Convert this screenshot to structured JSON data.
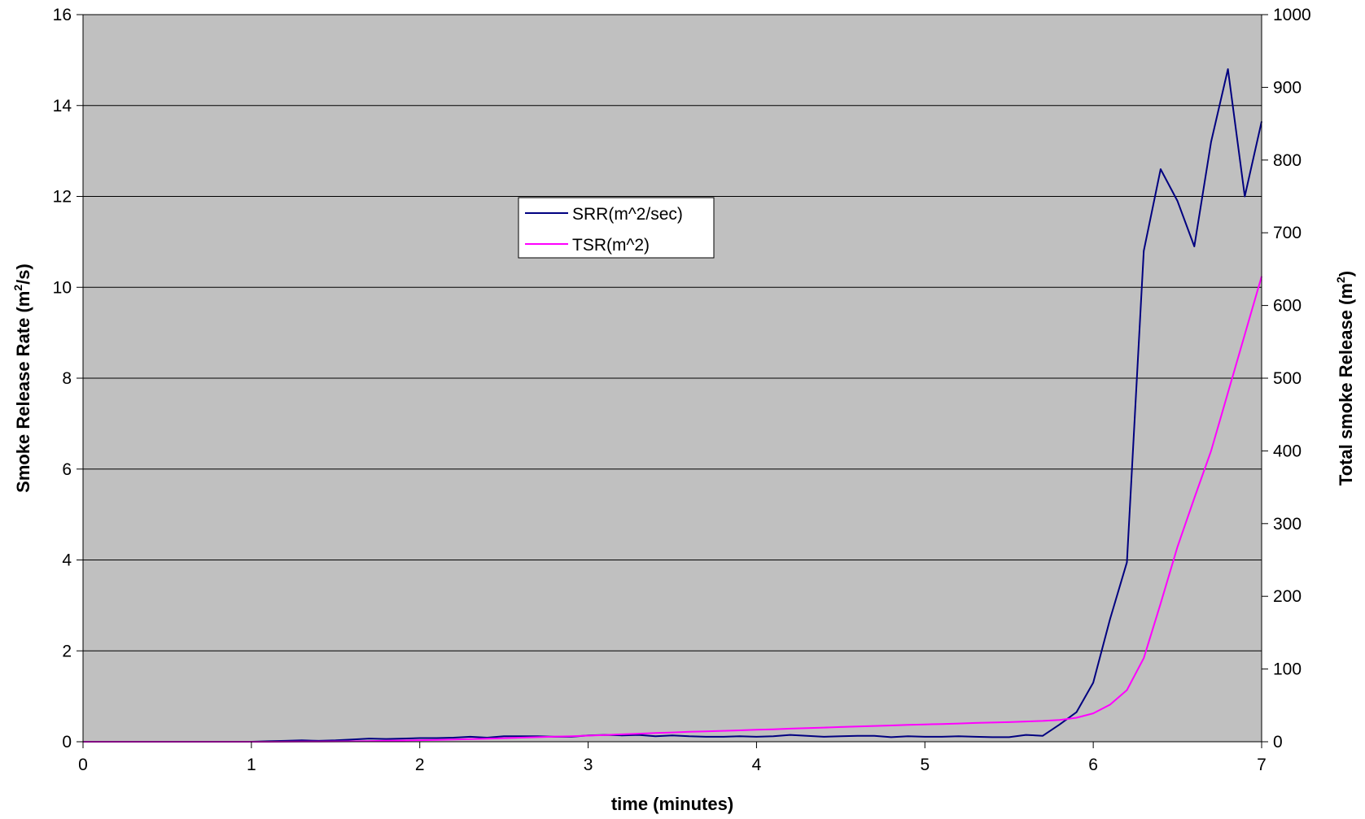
{
  "chart_data": {
    "type": "line",
    "title": "",
    "xlabel": "time (minutes)",
    "ylabel_left": {
      "base": "Smoke Release Rate (m",
      "sup": "2",
      "end": "/s)"
    },
    "ylabel_right": {
      "base": "Total smoke Release (m",
      "sup": "2",
      "end": ")"
    },
    "xlim": [
      0,
      7
    ],
    "ylim_left": [
      0,
      16
    ],
    "ylim_right": [
      0,
      1000
    ],
    "x_ticks": [
      "0",
      "1",
      "2",
      "3",
      "4",
      "5",
      "6",
      "7"
    ],
    "y_left_ticks": [
      "0",
      "2",
      "4",
      "6",
      "8",
      "10",
      "12",
      "14",
      "16"
    ],
    "y_right_ticks": [
      "0",
      "100",
      "200",
      "300",
      "400",
      "500",
      "600",
      "700",
      "800",
      "900",
      "1000"
    ],
    "plot_background": "#c0c0c0",
    "grid": "horizontal",
    "legend_position": "center-left",
    "series": [
      {
        "name": "SRR(m^2/sec)",
        "axis": "left",
        "color": "#000080",
        "x": [
          0,
          0.1,
          0.2,
          0.3,
          0.4,
          0.5,
          0.6,
          0.7,
          0.8,
          0.9,
          1.0,
          1.1,
          1.2,
          1.3,
          1.4,
          1.5,
          1.6,
          1.7,
          1.8,
          1.9,
          2.0,
          2.1,
          2.2,
          2.3,
          2.4,
          2.5,
          2.6,
          2.7,
          2.8,
          2.9,
          3.0,
          3.1,
          3.2,
          3.3,
          3.4,
          3.5,
          3.6,
          3.7,
          3.8,
          3.9,
          4.0,
          4.1,
          4.2,
          4.3,
          4.4,
          4.5,
          4.6,
          4.7,
          4.8,
          4.9,
          5.0,
          5.1,
          5.2,
          5.3,
          5.4,
          5.5,
          5.6,
          5.7,
          5.8,
          5.9,
          6.0,
          6.1,
          6.2,
          6.3,
          6.4,
          6.5,
          6.6,
          6.7,
          6.8,
          6.9,
          7.0
        ],
        "values": [
          0,
          0,
          0,
          0,
          0,
          0,
          0,
          0,
          0,
          0,
          0,
          0.01,
          0.02,
          0.03,
          0.02,
          0.03,
          0.05,
          0.07,
          0.06,
          0.07,
          0.08,
          0.08,
          0.09,
          0.11,
          0.09,
          0.12,
          0.12,
          0.12,
          0.11,
          0.11,
          0.14,
          0.15,
          0.14,
          0.15,
          0.12,
          0.14,
          0.12,
          0.11,
          0.11,
          0.12,
          0.11,
          0.12,
          0.15,
          0.13,
          0.11,
          0.12,
          0.13,
          0.13,
          0.1,
          0.12,
          0.11,
          0.11,
          0.12,
          0.11,
          0.1,
          0.1,
          0.15,
          0.13,
          0.38,
          0.65,
          1.3,
          2.7,
          3.95,
          10.8,
          12.6,
          11.9,
          10.9,
          13.2,
          14.8,
          12.0,
          13.65
        ]
      },
      {
        "name": "TSR(m^2)",
        "axis": "right",
        "color": "#ff00ff",
        "x": [
          0,
          0.1,
          0.2,
          0.3,
          0.4,
          0.5,
          0.6,
          0.7,
          0.8,
          0.9,
          1.0,
          1.1,
          1.2,
          1.3,
          1.4,
          1.5,
          1.6,
          1.7,
          1.8,
          1.9,
          2.0,
          2.1,
          2.2,
          2.3,
          2.4,
          2.5,
          2.6,
          2.7,
          2.8,
          2.9,
          3.0,
          3.1,
          3.2,
          3.3,
          3.4,
          3.5,
          3.6,
          3.7,
          3.8,
          3.9,
          4.0,
          4.1,
          4.2,
          4.3,
          4.4,
          4.5,
          4.6,
          4.7,
          4.8,
          4.9,
          5.0,
          5.1,
          5.2,
          5.3,
          5.4,
          5.5,
          5.6,
          5.7,
          5.8,
          5.9,
          6.0,
          6.1,
          6.2,
          6.3,
          6.4,
          6.5,
          6.6,
          6.7,
          6.8,
          6.9,
          7.0
        ],
        "values": [
          0,
          0,
          0,
          0,
          0,
          0,
          0,
          0,
          0,
          0,
          0,
          0,
          0.1,
          0.2,
          0.3,
          0.4,
          0.6,
          0.9,
          1.3,
          1.7,
          2.1,
          2.6,
          3.1,
          3.7,
          4.3,
          4.9,
          5.6,
          6.3,
          7,
          7.6,
          8.4,
          9.3,
          10.2,
          11.1,
          12,
          12.8,
          13.6,
          14.3,
          15,
          15.7,
          16.4,
          17.1,
          18,
          18.8,
          19.5,
          20.2,
          20.9,
          21.7,
          22.4,
          23.1,
          23.8,
          24.4,
          25.1,
          25.8,
          26.4,
          27,
          27.8,
          28.6,
          30,
          33,
          39,
          51,
          71,
          115,
          190,
          268,
          335,
          400,
          480,
          560,
          640
        ]
      }
    ]
  }
}
